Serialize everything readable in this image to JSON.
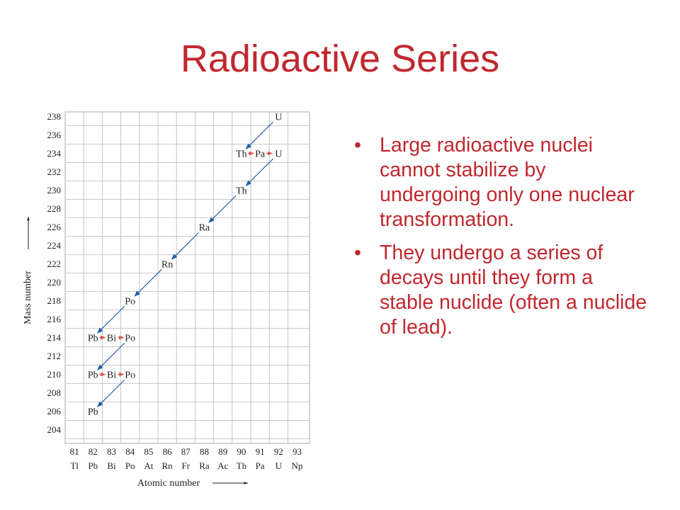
{
  "slide": {
    "title": "Radioactive Series",
    "bullets": [
      "Large radioactive nuclei cannot stabilize by undergoing only one nuclear transformation.",
      "They undergo a series of decays until they form a stable nuclide (often a nuclide of lead)."
    ]
  },
  "diagram": {
    "y_axis_label": "Mass number",
    "x_axis_label": "Atomic number",
    "mass_numbers": [
      238,
      236,
      234,
      232,
      230,
      228,
      226,
      224,
      222,
      220,
      218,
      216,
      214,
      212,
      210,
      208,
      206,
      204
    ],
    "atomic_numbers": [
      "81",
      "82",
      "83",
      "84",
      "85",
      "86",
      "87",
      "88",
      "89",
      "90",
      "91",
      "92",
      "93"
    ],
    "element_symbols": [
      "Tl",
      "Pb",
      "Bi",
      "Po",
      "At",
      "Rn",
      "Fr",
      "Ra",
      "Ac",
      "Th",
      "Pa",
      "U",
      "Np"
    ],
    "nuclides": [
      {
        "symbol": "U",
        "z": 92,
        "a": 238
      },
      {
        "symbol": "Th",
        "z": 90,
        "a": 234
      },
      {
        "symbol": "Pa",
        "z": 91,
        "a": 234
      },
      {
        "symbol": "U",
        "z": 92,
        "a": 234
      },
      {
        "symbol": "Th",
        "z": 90,
        "a": 230
      },
      {
        "symbol": "Ra",
        "z": 88,
        "a": 226
      },
      {
        "symbol": "Rn",
        "z": 86,
        "a": 222
      },
      {
        "symbol": "Po",
        "z": 84,
        "a": 218
      },
      {
        "symbol": "Pb",
        "z": 82,
        "a": 214
      },
      {
        "symbol": "Bi",
        "z": 83,
        "a": 214
      },
      {
        "symbol": "Po",
        "z": 84,
        "a": 214
      },
      {
        "symbol": "Pb",
        "z": 82,
        "a": 210
      },
      {
        "symbol": "Bi",
        "z": 83,
        "a": 210
      },
      {
        "symbol": "Po",
        "z": 84,
        "a": 210
      },
      {
        "symbol": "Pb",
        "z": 82,
        "a": 206
      }
    ],
    "decays": [
      {
        "from": [
          92,
          238
        ],
        "to": [
          90,
          234
        ],
        "type": "alpha"
      },
      {
        "from": [
          90,
          234
        ],
        "to": [
          91,
          234
        ],
        "type": "beta"
      },
      {
        "from": [
          91,
          234
        ],
        "to": [
          92,
          234
        ],
        "type": "beta"
      },
      {
        "from": [
          92,
          234
        ],
        "to": [
          90,
          230
        ],
        "type": "alpha"
      },
      {
        "from": [
          90,
          230
        ],
        "to": [
          88,
          226
        ],
        "type": "alpha"
      },
      {
        "from": [
          88,
          226
        ],
        "to": [
          86,
          222
        ],
        "type": "alpha"
      },
      {
        "from": [
          86,
          222
        ],
        "to": [
          84,
          218
        ],
        "type": "alpha"
      },
      {
        "from": [
          84,
          218
        ],
        "to": [
          82,
          214
        ],
        "type": "alpha"
      },
      {
        "from": [
          82,
          214
        ],
        "to": [
          83,
          214
        ],
        "type": "beta"
      },
      {
        "from": [
          83,
          214
        ],
        "to": [
          84,
          214
        ],
        "type": "beta"
      },
      {
        "from": [
          84,
          214
        ],
        "to": [
          82,
          210
        ],
        "type": "alpha"
      },
      {
        "from": [
          82,
          210
        ],
        "to": [
          83,
          210
        ],
        "type": "beta"
      },
      {
        "from": [
          83,
          210
        ],
        "to": [
          84,
          210
        ],
        "type": "beta"
      },
      {
        "from": [
          84,
          210
        ],
        "to": [
          82,
          206
        ],
        "type": "alpha"
      }
    ],
    "colors": {
      "arrow": "#1f5fa8",
      "beta_arrow": "#d9534f",
      "grid": "#b8b8b8",
      "text": "#231f20"
    }
  }
}
